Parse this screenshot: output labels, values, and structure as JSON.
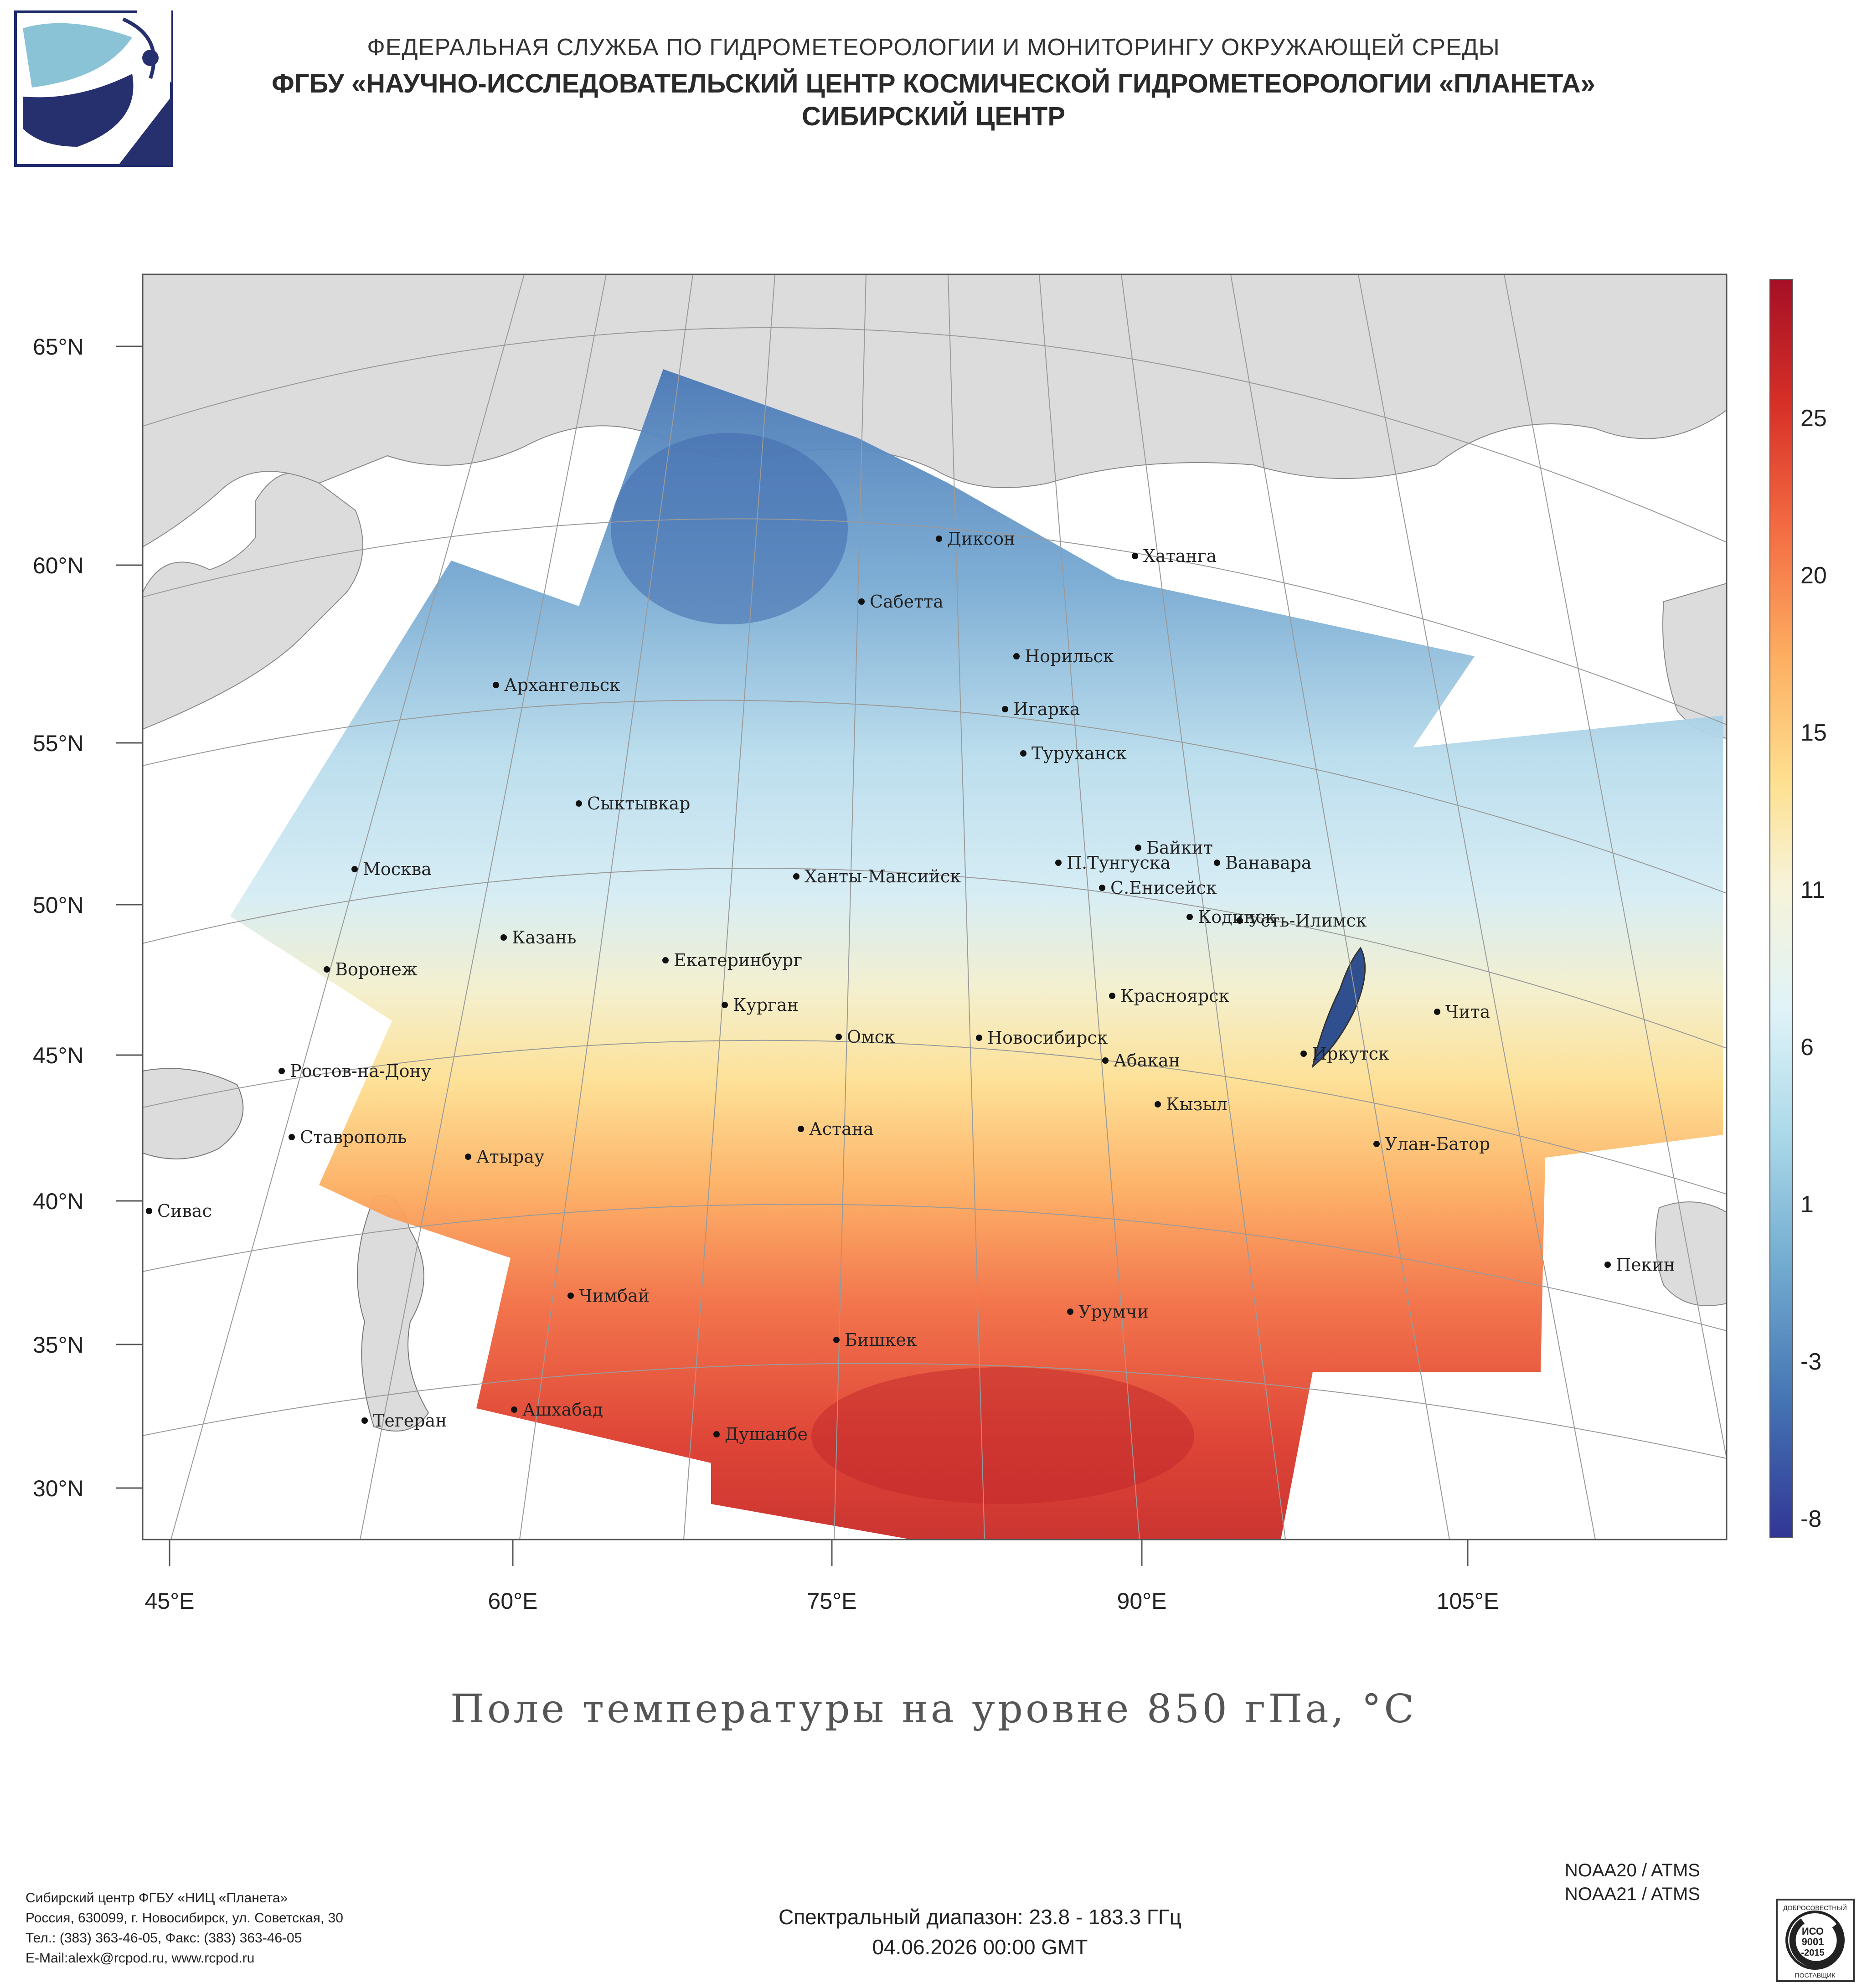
{
  "header": {
    "line1": "ФЕДЕРАЛЬНАЯ СЛУЖБА ПО ГИДРОМЕТЕОРОЛОГИИ И МОНИТОРИНГУ ОКРУЖАЮЩЕЙ СРЕДЫ",
    "line2": "ФГБУ «НАУЧНО-ИССЛЕДОВАТЕЛЬСКИЙ ЦЕНТР КОСМИЧЕСКОЙ ГИДРОМЕТЕОРОЛОГИИ «ПЛАНЕТА»",
    "line3": "СИБИРСКИЙ ЦЕНТР"
  },
  "map": {
    "title": "Поле температуры на уровне 850 гПа, °C",
    "lat_labels": [
      "65°N",
      "60°N",
      "55°N",
      "50°N",
      "45°N",
      "40°N",
      "35°N",
      "30°N"
    ],
    "lon_labels": [
      "45°E",
      "60°E",
      "75°E",
      "90°E",
      "105°E"
    ],
    "colorbar": {
      "ticks": [
        "25",
        "20",
        "15",
        "11",
        "6",
        "1",
        "-3",
        "-8"
      ],
      "colors": [
        "#a50f26",
        "#d73027",
        "#f46d43",
        "#fdae61",
        "#fee090",
        "#f7f3d8",
        "#e0f3f8",
        "#abd9e9",
        "#74add1",
        "#4575b4",
        "#313695"
      ]
    },
    "cities": [
      {
        "name": "Диксон"
      },
      {
        "name": "Хатанга"
      },
      {
        "name": "Сабетта"
      },
      {
        "name": "Норильск"
      },
      {
        "name": "Игарка"
      },
      {
        "name": "Архангельск"
      },
      {
        "name": "Туруханск"
      },
      {
        "name": "Сыктывкар"
      },
      {
        "name": "Байкит"
      },
      {
        "name": "П.Тунгуска"
      },
      {
        "name": "Ванавара"
      },
      {
        "name": "Москва"
      },
      {
        "name": "Ханты-Мансийск"
      },
      {
        "name": "С.Енисейск"
      },
      {
        "name": "Кодинск"
      },
      {
        "name": "Усть-Илимск"
      },
      {
        "name": "Казань"
      },
      {
        "name": "Екатеринбург"
      },
      {
        "name": "Воронеж"
      },
      {
        "name": "Красноярск"
      },
      {
        "name": "Курган"
      },
      {
        "name": "Чита"
      },
      {
        "name": "Омск"
      },
      {
        "name": "Новосибирск"
      },
      {
        "name": "Иркутск"
      },
      {
        "name": "Абакан"
      },
      {
        "name": "Ростов-на-Дону"
      },
      {
        "name": "Кызыл"
      },
      {
        "name": "Астана"
      },
      {
        "name": "Ставрополь"
      },
      {
        "name": "Улан-Батор"
      },
      {
        "name": "Атырау"
      },
      {
        "name": "Сивас"
      },
      {
        "name": "Пекин"
      },
      {
        "name": "Чимбай"
      },
      {
        "name": "Урумчи"
      },
      {
        "name": "Бишкек"
      },
      {
        "name": "Ашхабад"
      },
      {
        "name": "Тегеран"
      },
      {
        "name": "Душанбе"
      }
    ]
  },
  "footer": {
    "left": [
      "Сибирский центр ФГБУ «НИЦ «Планета»",
      "Россия, 630099, г. Новосибирск, ул. Советская, 30",
      "Тел.: (383) 363-46-05, Факс: (383) 363-46-05",
      "E-Mail:alexk@rcpod.ru, www.rcpod.ru"
    ],
    "center": [
      "Спектральный диапазон: 23.8 - 183.3 ГГц",
      "04.06.2026 00:00 GMT"
    ],
    "right": [
      "NOAA20 / ATMS",
      "NOAA21 / ATMS"
    ],
    "iso": {
      "top": "ДОБРОСОВЕСТНЫЙ",
      "l1": "ИСО",
      "l2": "9001",
      "l3": "-2015",
      "bottom": "ПОСТАВЩИК"
    }
  }
}
